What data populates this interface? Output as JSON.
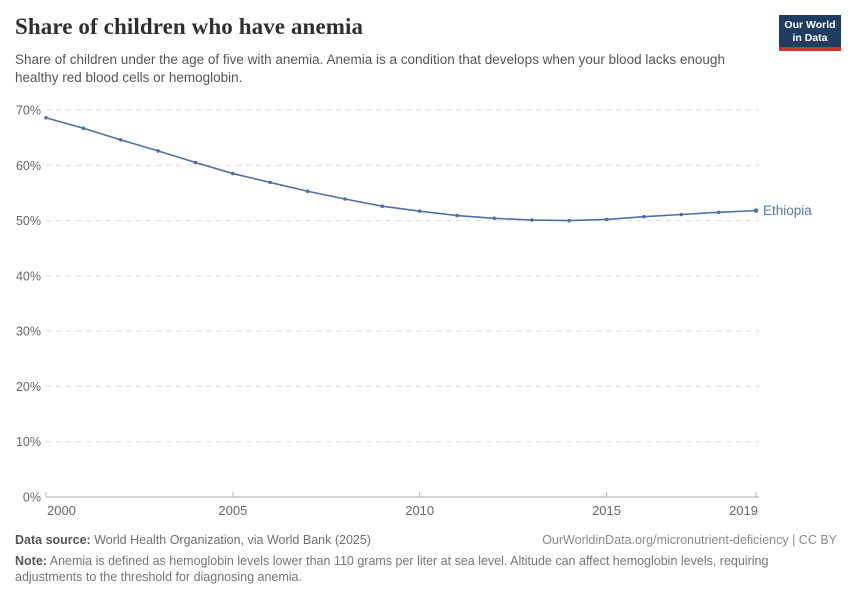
{
  "header": {
    "title": "Share of children who have anemia",
    "subtitle": "Share of children under the age of five with anemia. Anemia is a condition that develops when your blood lacks enough healthy red blood cells or hemoglobin.",
    "logo": {
      "line1": "Our World",
      "line2": "in Data"
    }
  },
  "chart_data": {
    "type": "line",
    "title": "Share of children who have anemia",
    "x": [
      2000,
      2001,
      2002,
      2003,
      2004,
      2005,
      2006,
      2007,
      2008,
      2009,
      2010,
      2011,
      2012,
      2013,
      2014,
      2015,
      2016,
      2017,
      2018,
      2019
    ],
    "series": [
      {
        "name": "Ethiopia",
        "values": [
          68.6,
          66.7,
          64.6,
          62.6,
          60.5,
          58.5,
          56.9,
          55.3,
          53.9,
          52.6,
          51.7,
          50.9,
          50.4,
          50.1,
          50.0,
          50.2,
          50.7,
          51.1,
          51.5,
          51.8
        ],
        "color": "#4e6fa6",
        "label_color": "#5578ae"
      }
    ],
    "xlabel": "",
    "ylabel": "",
    "y_unit": "%",
    "ylim": [
      0,
      70
    ],
    "yticks": [
      0,
      10,
      20,
      30,
      40,
      50,
      60,
      70
    ],
    "xticks": [
      2000,
      2005,
      2010,
      2015,
      2019
    ],
    "grid": "horizontal-dashed",
    "legend_position": "end-of-line-label"
  },
  "footer": {
    "data_source_label": "Data source:",
    "data_source_text": " World Health Organization, via World Bank (2025)",
    "link": "OurWorldinData.org/micronutrient-deficiency | CC BY",
    "note_label": "Note:",
    "note_text": " Anemia is defined as hemoglobin levels lower than 110 grams per liter at sea level. Altitude can affect hemoglobin levels, requiring adjustments to the threshold for diagnosing anemia."
  },
  "colors": {
    "logo_bg": "#1d3d63",
    "logo_stripe": "#d0352a",
    "line": "#4e6fa6",
    "gridline": "#dcdcdc",
    "axis": "#a8a8a8",
    "tick": "#b5b5b5",
    "axis_text": "#666666"
  }
}
